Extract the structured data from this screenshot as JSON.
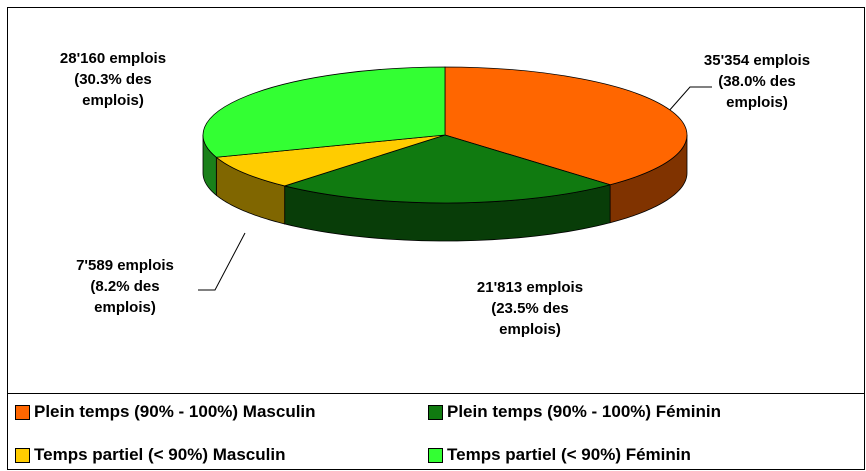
{
  "chart_data": {
    "type": "pie3d",
    "categories": [
      "Plein temps (90% - 100%) Masculin",
      "Plein temps (90% - 100%) Féminin",
      "Temps partiel (< 90%) Masculin",
      "Temps partiel (< 90%) Féminin"
    ],
    "values": [
      35354,
      21813,
      7589,
      28160
    ],
    "value_labels": [
      "35'354 emplois (38.0% des emplois)",
      "21'813 emplois (23.5% des emplois)",
      "7'589 emplois (8.2% des emplois)",
      "28'160 emplois (30.3% des emplois)"
    ],
    "colors": [
      "#ff6600",
      "#107a10",
      "#ffcc00",
      "#33ff33"
    ],
    "legend": "bottom"
  }
}
